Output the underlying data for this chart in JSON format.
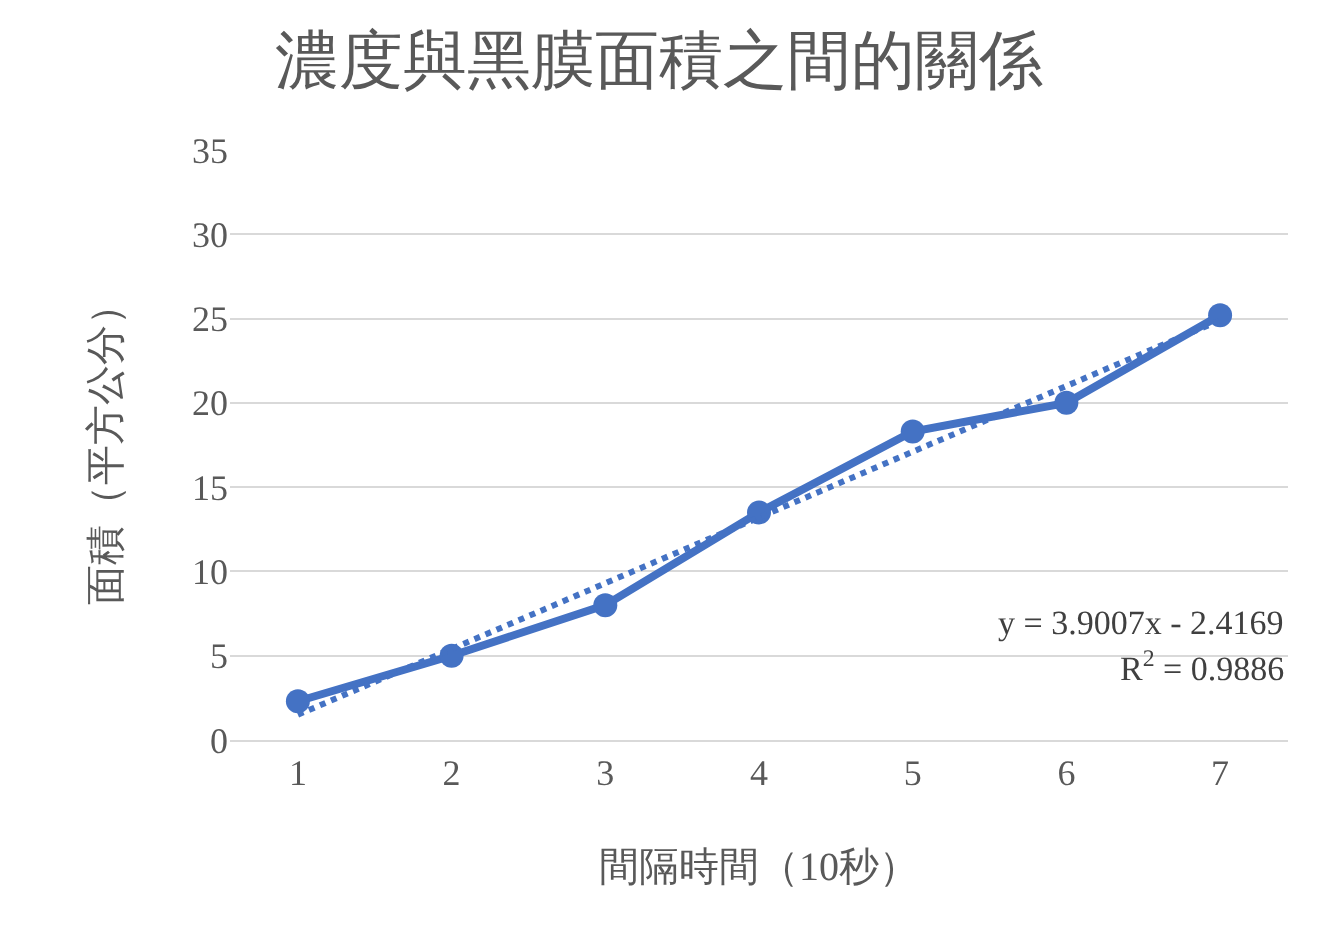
{
  "chart_data": {
    "type": "line",
    "title": "濃度與黑膜面積之間的關係",
    "xlabel": "間隔時間（10秒）",
    "ylabel": "面積（平方公分）",
    "categories": [
      "1",
      "2",
      "3",
      "4",
      "5",
      "6",
      "7"
    ],
    "series": [
      {
        "color": "#4472c4",
        "values": [
          2.3,
          5.0,
          8.0,
          13.5,
          18.3,
          20.0,
          25.2
        ],
        "marker": "circle",
        "line_style": "solid"
      },
      {
        "type": "line",
        "x": [
          "1",
          "7"
        ],
        "color": "#4472c4",
        "values": [
          1.5,
          24.9
        ],
        "marker": "none",
        "line_style": "dotted"
      }
    ],
    "ylim": [
      0,
      35
    ],
    "yticks": [
      0,
      5,
      10,
      15,
      20,
      25,
      30,
      35
    ],
    "grid": "y",
    "annotations": [
      "y = 3.9007x - 2.4169",
      "R$^{2}$ = 0.9886"
    ]
  }
}
